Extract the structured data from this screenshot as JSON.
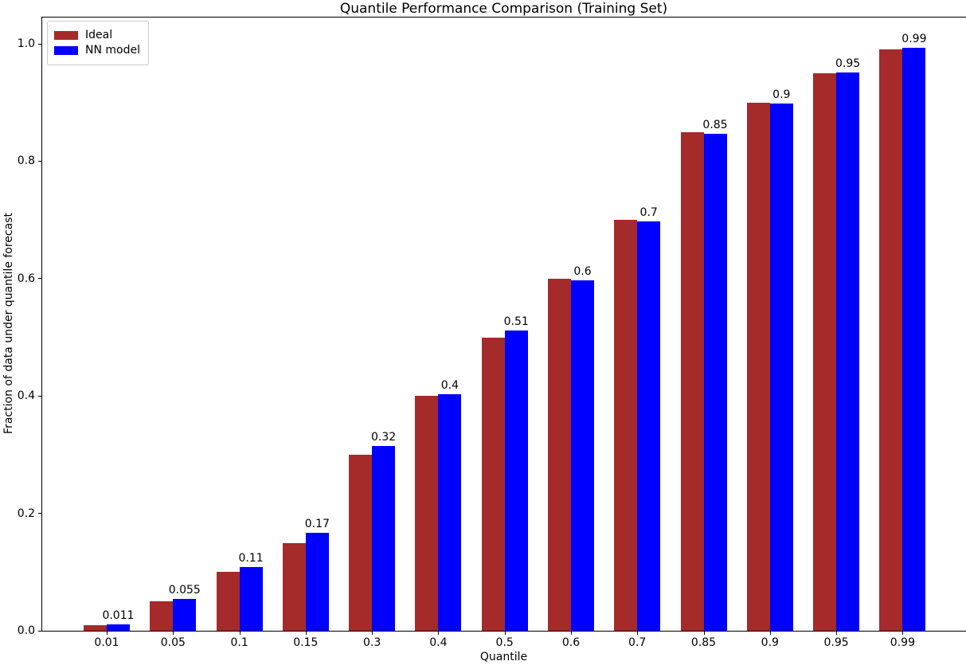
{
  "chart_data": {
    "type": "bar",
    "title": "Quantile Performance Comparison (Training Set)",
    "xlabel": "Quantile",
    "ylabel": "Fraction of data under quantile forecast",
    "categories": [
      "0.01",
      "0.05",
      "0.1",
      "0.15",
      "0.3",
      "0.4",
      "0.5",
      "0.6",
      "0.7",
      "0.85",
      "0.9",
      "0.95",
      "0.99"
    ],
    "series": [
      {
        "name": "Ideal",
        "color": "#a52a2a",
        "values": [
          0.01,
          0.05,
          0.1,
          0.15,
          0.3,
          0.4,
          0.5,
          0.6,
          0.7,
          0.85,
          0.9,
          0.95,
          0.99
        ]
      },
      {
        "name": "NN model",
        "color": "#0000ff",
        "values": [
          0.011,
          0.055,
          0.108,
          0.167,
          0.315,
          0.403,
          0.512,
          0.597,
          0.698,
          0.847,
          0.898,
          0.951,
          0.993
        ]
      }
    ],
    "bar_labels": [
      "0.011",
      "0.055",
      "0.11",
      "0.17",
      "0.32",
      "0.4",
      "0.51",
      "0.6",
      "0.7",
      "0.85",
      "0.9",
      "0.95",
      "0.99"
    ],
    "yticks": [
      "0.0",
      "0.2",
      "0.4",
      "0.6",
      "0.8",
      "1.0"
    ],
    "ylim": [
      0,
      1.045
    ],
    "grid": false,
    "legend_position": "upper left"
  }
}
